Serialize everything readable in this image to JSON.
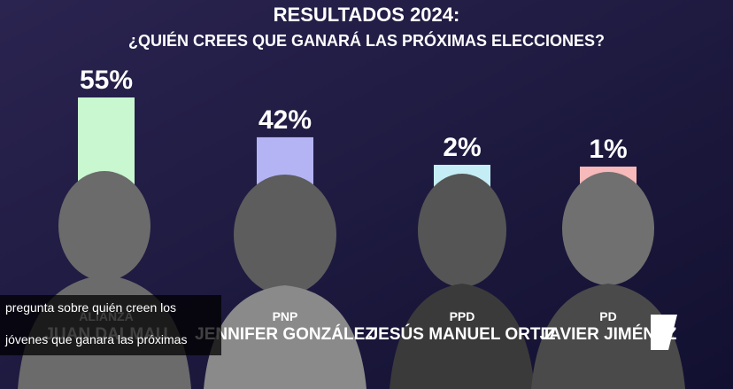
{
  "chart_data": {
    "type": "bar",
    "title": "RESULTADOS 2024:",
    "subtitle": "¿QUIÉN CREES QUE GANARÁ LAS PRÓXIMAS ELECCIONES?",
    "parties": [
      "ALIANZA",
      "PNP",
      "PPD",
      "PD"
    ],
    "categories": [
      "JUAN DALMAU",
      "JENNIFER GONZÁLEZ",
      "JESÚS MANUEL ORTIZ",
      "JAVIER JIMÉNEZ"
    ],
    "values": [
      55,
      42,
      2,
      1
    ],
    "value_labels": [
      "55%",
      "42%",
      "2%",
      "1%"
    ],
    "colors": [
      "#c9f7cf",
      "#b4b4f5",
      "#c4edf5",
      "#f7b9b9"
    ]
  },
  "caption": {
    "lines": [
      "pregunta sobre quién creen los",
      "jóvenes que ganara las próximas"
    ]
  }
}
